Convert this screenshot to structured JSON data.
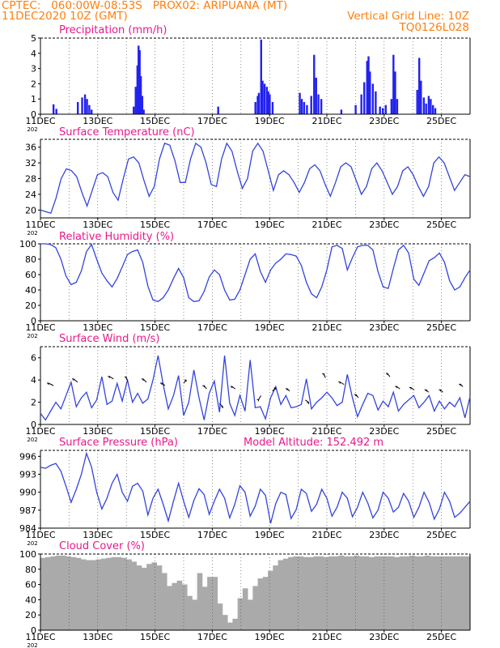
{
  "header": {
    "line1": "CPTEC:   060:00W-08:53S   PROX02: ARIPUANA (MT)",
    "line2": "11DEC2020 10Z (GMT)",
    "grid_note": "Vertical Grid Line: 10Z",
    "code": "TQ0126L028"
  },
  "x_ticks": [
    "11DEC",
    "13DEC",
    "15DEC",
    "17DEC",
    "19DEC",
    "21DEC",
    "23DEC",
    "25DEC"
  ],
  "x_tick_prefix": "202",
  "colors": {
    "header": "#ff7f0e",
    "title": "#e8198b",
    "line": "#3344dd",
    "bar": "#2222ee",
    "cloud": "#aaaaaa",
    "axis": "#000000"
  },
  "chart_data": [
    {
      "type": "bar",
      "title": "Precipitation (mm/h)",
      "ylim": [
        0,
        5
      ],
      "yticks": [
        "0",
        "1",
        "2",
        "3",
        "4",
        "5"
      ],
      "color": "#2222ee",
      "bars": [
        [
          0.45,
          0.65
        ],
        [
          0.55,
          0.35
        ],
        [
          1.3,
          0.8
        ],
        [
          1.45,
          1.1
        ],
        [
          1.55,
          1.3
        ],
        [
          1.62,
          1.0
        ],
        [
          1.7,
          0.6
        ],
        [
          1.78,
          0.3
        ],
        [
          3.25,
          0.5
        ],
        [
          3.32,
          1.8
        ],
        [
          3.38,
          3.2
        ],
        [
          3.42,
          4.5
        ],
        [
          3.46,
          4.2
        ],
        [
          3.5,
          2.5
        ],
        [
          3.55,
          1.2
        ],
        [
          3.6,
          0.3
        ],
        [
          6.2,
          0.5
        ],
        [
          7.5,
          0.8
        ],
        [
          7.58,
          1.2
        ],
        [
          7.62,
          1.4
        ],
        [
          7.7,
          4.9
        ],
        [
          7.75,
          2.2
        ],
        [
          7.82,
          2.0
        ],
        [
          7.9,
          1.8
        ],
        [
          7.95,
          1.5
        ],
        [
          8.0,
          1.3
        ],
        [
          8.1,
          0.8
        ],
        [
          9.05,
          1.4
        ],
        [
          9.12,
          1.0
        ],
        [
          9.2,
          0.8
        ],
        [
          9.3,
          0.6
        ],
        [
          9.45,
          1.2
        ],
        [
          9.55,
          3.9
        ],
        [
          9.62,
          2.4
        ],
        [
          9.7,
          1.3
        ],
        [
          9.8,
          1.0
        ],
        [
          10.5,
          0.3
        ],
        [
          11.0,
          0.6
        ],
        [
          11.2,
          1.3
        ],
        [
          11.3,
          2.1
        ],
        [
          11.4,
          3.5
        ],
        [
          11.45,
          3.8
        ],
        [
          11.5,
          2.8
        ],
        [
          11.6,
          2.0
        ],
        [
          11.7,
          1.5
        ],
        [
          11.85,
          0.5
        ],
        [
          11.95,
          0.4
        ],
        [
          12.05,
          0.6
        ],
        [
          12.25,
          1.0
        ],
        [
          12.32,
          3.9
        ],
        [
          12.38,
          2.8
        ],
        [
          12.45,
          1.0
        ],
        [
          13.15,
          1.6
        ],
        [
          13.22,
          3.7
        ],
        [
          13.28,
          2.2
        ],
        [
          13.38,
          1.1
        ],
        [
          13.46,
          0.7
        ],
        [
          13.55,
          1.2
        ],
        [
          13.62,
          1.0
        ],
        [
          13.7,
          0.6
        ],
        [
          13.78,
          0.4
        ]
      ]
    },
    {
      "type": "line",
      "title": "Surface Temperature (nC)",
      "ylim": [
        18,
        38
      ],
      "yticks": [
        "20",
        "24",
        "28",
        "32",
        "36"
      ],
      "color": "#3344dd",
      "values": [
        20,
        19.6,
        19.2,
        23,
        28,
        30.5,
        30,
        28.5,
        24.5,
        21,
        25,
        29,
        29.5,
        28.5,
        24.5,
        22.5,
        28,
        33,
        33.5,
        32,
        27.5,
        23.5,
        26,
        33,
        37,
        36.5,
        32.5,
        27,
        27,
        33,
        37,
        36,
        32,
        26.5,
        26,
        33,
        37,
        35,
        30,
        25.5,
        28,
        35,
        37,
        35,
        30,
        25,
        29,
        30,
        29,
        27,
        24.5,
        27,
        30.5,
        31.5,
        30,
        26.5,
        23.5,
        27,
        31,
        32,
        31,
        27.5,
        24,
        26,
        30.5,
        32,
        30,
        27,
        24,
        26,
        30,
        31,
        29,
        26,
        23.5,
        26,
        32,
        33.5,
        32,
        28.5,
        25,
        27,
        29,
        28.5
      ]
    },
    {
      "type": "line",
      "title": "Relative Humidity (%)",
      "ylim": [
        0,
        100
      ],
      "yticks": [
        "0",
        "20",
        "40",
        "60",
        "80",
        "100"
      ],
      "color": "#3344dd",
      "values": [
        100,
        100,
        99,
        95,
        80,
        58,
        47,
        50,
        65,
        90,
        99,
        80,
        62,
        52,
        44,
        55,
        70,
        86,
        90,
        92,
        76,
        45,
        27,
        25,
        30,
        40,
        55,
        68,
        56,
        30,
        25,
        26,
        38,
        57,
        66,
        60,
        40,
        27,
        28,
        40,
        60,
        80,
        87,
        64,
        50,
        66,
        75,
        80,
        87,
        86,
        84,
        72,
        50,
        35,
        30,
        44,
        66,
        96,
        98,
        94,
        66,
        82,
        96,
        98,
        98,
        92,
        64,
        44,
        42,
        68,
        92,
        98,
        88,
        54,
        46,
        62,
        78,
        82,
        88,
        76,
        52,
        40,
        44,
        56,
        66
      ]
    },
    {
      "type": "line",
      "title": "Surface Wind (m/s)",
      "ylim": [
        0,
        7
      ],
      "yticks": [
        "0",
        "2",
        "4",
        "6"
      ],
      "color": "#3344dd",
      "values": [
        1.0,
        0.4,
        1.2,
        2.0,
        1.4,
        2.6,
        3.8,
        1.6,
        2.4,
        2.9,
        1.5,
        2.2,
        4.3,
        1.8,
        2.1,
        3.7,
        2.1,
        4.0,
        2.0,
        2.8,
        1.9,
        2.3,
        4.0,
        6.2,
        3.6,
        1.4,
        2.6,
        4.4,
        0.8,
        2.0,
        4.9,
        2.4,
        0.4,
        2.8,
        3.9,
        1.1,
        6.2,
        1.9,
        0.8,
        2.6,
        1.2,
        5.8,
        1.5,
        1.6,
        0.5,
        2.4,
        3.4,
        1.8,
        2.6,
        1.5,
        1.6,
        1.8,
        4.1,
        1.4,
        2.0,
        2.4,
        2.9,
        2.4,
        1.7,
        2.0,
        4.5,
        2.4,
        0.7,
        1.8,
        2.8,
        2.6,
        1.3,
        2.1,
        1.6,
        2.9,
        1.2,
        1.8,
        2.2,
        2.6,
        1.5,
        2.0,
        2.6,
        1.2,
        2.1,
        1.4,
        2.0,
        1.6,
        2.4,
        0.6,
        2.5
      ]
    },
    {
      "type": "line",
      "title": "Surface Pressure (hPa)",
      "annotation": "Model Altitude: 152.492 m",
      "ylim": [
        984,
        997
      ],
      "yticks": [
        "984",
        "987",
        "990",
        "993",
        "996"
      ],
      "color": "#3344dd",
      "values": [
        994.2,
        994.0,
        994.5,
        994.8,
        993.5,
        991.0,
        988.3,
        990.5,
        993.0,
        996.5,
        994.2,
        990.0,
        987.2,
        989.0,
        991.5,
        993.0,
        990.0,
        988.5,
        991.0,
        991.5,
        990.2,
        986.2,
        989.0,
        990.5,
        988.0,
        985.2,
        988.5,
        991.5,
        988.5,
        985.8,
        988.6,
        990.6,
        989.6,
        986.3,
        988.5,
        990.5,
        989.0,
        985.7,
        988.0,
        991.1,
        990.0,
        986.0,
        987.7,
        990.5,
        989.5,
        984.8,
        988.1,
        990.0,
        989.6,
        985.6,
        987.1,
        990.5,
        989.8,
        986.8,
        988.0,
        990.5,
        989.0,
        986.0,
        987.5,
        990.0,
        989.0,
        985.9,
        987.5,
        990.0,
        988.2,
        985.7,
        987.0,
        990.0,
        989.0,
        986.7,
        987.5,
        989.8,
        988.5,
        985.8,
        987.5,
        990.0,
        988.3,
        985.5,
        987.2,
        990.0,
        988.5,
        985.8,
        986.5,
        987.5,
        988.5
      ]
    },
    {
      "type": "area",
      "title": "Cloud Cover (%)",
      "ylim": [
        0,
        100
      ],
      "yticks": [
        "0",
        "20",
        "40",
        "60",
        "80",
        "100"
      ],
      "color": "#aaaaaa",
      "values": [
        95,
        96,
        97,
        98,
        98,
        97,
        96,
        95,
        93,
        92,
        92,
        93,
        94,
        95,
        96,
        96,
        95,
        93,
        90,
        85,
        82,
        87,
        89,
        85,
        75,
        58,
        62,
        65,
        60,
        45,
        40,
        75,
        57,
        70,
        70,
        35,
        20,
        10,
        15,
        42,
        55,
        40,
        58,
        68,
        70,
        78,
        85,
        92,
        94,
        96,
        97,
        97,
        96,
        96,
        97,
        97,
        96,
        97,
        97,
        98,
        97,
        97,
        98,
        97,
        97,
        96,
        97,
        97,
        97,
        97,
        96,
        97,
        97,
        98,
        97,
        97,
        98,
        97,
        97,
        97,
        97,
        97,
        97,
        97,
        97
      ]
    }
  ]
}
